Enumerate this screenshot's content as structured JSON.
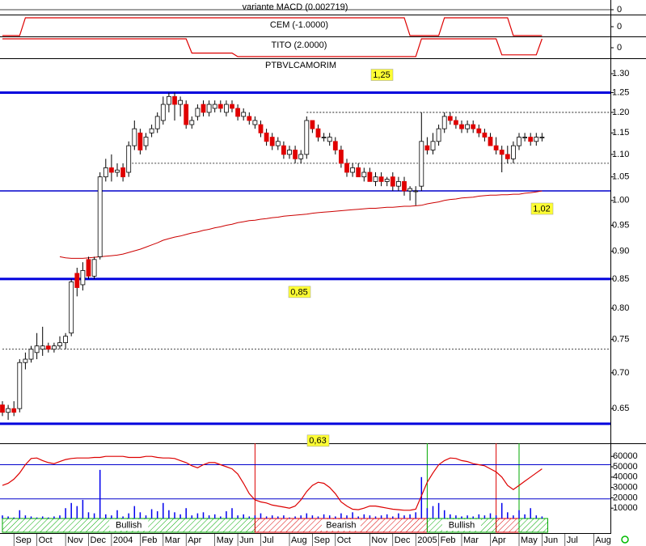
{
  "chart_data": [
    {
      "type": "bar",
      "title": "variante MACD (0.002719)",
      "ylim": [
        -1,
        1
      ],
      "yticks": [
        0
      ],
      "grid": true
    },
    {
      "type": "line",
      "title": "CEM (-1.0000)",
      "color": "#dd0000",
      "ylim": [
        -1,
        1
      ],
      "yticks": [
        0
      ],
      "values": [
        -1,
        -1,
        -1,
        -1,
        1,
        1,
        1,
        1,
        1,
        1,
        1,
        1,
        1,
        1,
        1,
        1,
        1,
        1,
        1,
        1,
        1,
        1,
        1,
        1,
        1,
        1,
        1,
        1,
        1,
        1,
        1,
        1,
        1,
        1,
        1,
        1,
        1,
        1,
        1,
        1,
        1,
        1,
        1,
        1,
        1,
        1,
        1,
        1,
        1,
        1,
        1,
        1,
        1,
        1,
        1,
        1,
        1,
        1,
        1,
        1,
        1,
        1,
        1,
        1,
        1,
        1,
        1,
        1,
        1,
        1,
        1,
        -1,
        -1,
        -1,
        -1,
        -1,
        -1,
        1,
        1,
        1,
        1,
        1,
        1,
        1,
        1,
        1,
        1,
        1,
        1,
        -1,
        -1,
        -1,
        -1,
        -1,
        -1
      ]
    },
    {
      "type": "line",
      "title": "TITO (2.0000)",
      "color": "#dd0000",
      "ylim": [
        -1,
        1
      ],
      "yticks": [
        0
      ],
      "values": [
        1,
        1,
        1,
        1,
        1,
        1,
        1,
        1,
        1,
        1,
        1,
        1,
        1,
        1,
        1,
        1,
        1,
        1,
        1,
        1,
        1,
        1,
        1,
        1,
        1,
        1,
        1,
        1,
        1,
        1,
        1,
        1,
        1,
        -0.6,
        -0.6,
        -0.6,
        -0.6,
        -0.6,
        -0.6,
        -0.6,
        -0.6,
        -1,
        -1,
        -1,
        -1,
        -1,
        -1,
        -1,
        -1,
        -1,
        -1,
        -1,
        -1,
        -1,
        -1,
        -1,
        -1,
        -1,
        -1,
        -1,
        -1,
        -1,
        -1,
        -1,
        -1,
        -1,
        -1,
        -1,
        -1,
        -1,
        -1,
        -1,
        -1,
        1,
        1,
        1,
        1,
        1,
        1,
        1,
        1,
        1,
        1,
        1,
        1,
        1,
        1,
        -0.8,
        -0.8,
        -0.8,
        -0.8,
        -0.8,
        -0.8,
        -0.8,
        1
      ]
    },
    {
      "type": "candlestick",
      "title": "PTBVLCAMORIM",
      "log_scale": true,
      "ylim": [
        0.605,
        1.34
      ],
      "yticks": [
        {
          "value": 1.3,
          "label": "1.30"
        },
        1.25,
        {
          "value": 1.2,
          "label": "1.20"
        },
        1.15,
        {
          "value": 1.1,
          "label": "1.10"
        },
        1.05,
        {
          "value": 1.0,
          "label": "1.00"
        },
        0.95,
        {
          "value": 0.9,
          "label": "0.90"
        },
        0.85,
        {
          "value": 0.8,
          "label": "0.80"
        },
        0.75,
        {
          "value": 0.7,
          "label": "0.70"
        },
        0.65
      ],
      "up_color": "#ffffff",
      "down_color": "#e00000",
      "categories": [
        null,
        null,
        "Sep",
        null,
        null,
        null,
        "Oct",
        null,
        null,
        null,
        null,
        "Nov",
        null,
        null,
        null,
        "Dec",
        null,
        null,
        null,
        "2004",
        null,
        null,
        null,
        null,
        "Feb",
        null,
        null,
        null,
        "Mar",
        null,
        null,
        null,
        "Apr",
        null,
        null,
        null,
        null,
        "May",
        null,
        null,
        null,
        "Jun",
        null,
        null,
        null,
        "Jul",
        null,
        null,
        null,
        null,
        "Aug",
        null,
        null,
        null,
        "Sep",
        null,
        null,
        null,
        "Oct",
        null,
        null,
        null,
        null,
        null,
        "Nov",
        null,
        null,
        null,
        "Dec",
        null,
        null,
        null,
        "2005",
        null,
        null,
        null,
        "Feb",
        null,
        null,
        null,
        "Mar",
        null,
        null,
        null,
        null,
        "Apr",
        null,
        null,
        null,
        null,
        "May",
        null,
        null,
        null,
        "Jun",
        null,
        null,
        null,
        "Jul",
        null,
        null,
        null,
        null,
        "Aug",
        null,
        null
      ],
      "open": [
        0.655,
        0.645,
        0.65,
        0.65,
        0.715,
        0.72,
        0.73,
        0.735,
        0.74,
        0.735,
        0.74,
        0.745,
        0.76,
        0.86,
        0.84,
        0.885,
        0.855,
        0.89,
        1.05,
        1.07,
        1.06,
        1.07,
        1.06,
        1.12,
        1.15,
        1.12,
        1.15,
        1.16,
        1.18,
        1.22,
        1.24,
        1.22,
        1.22,
        1.17,
        1.19,
        1.22,
        1.2,
        1.21,
        1.22,
        1.2,
        1.22,
        1.21,
        1.19,
        1.19,
        1.17,
        1.17,
        1.15,
        1.14,
        1.12,
        1.12,
        1.1,
        1.11,
        1.09,
        1.1,
        1.18,
        1.16,
        1.14,
        1.13,
        1.13,
        1.11,
        1.08,
        1.06,
        1.07,
        1.05,
        1.06,
        1.04,
        1.05,
        1.04,
        1.05,
        1.03,
        1.04,
        1.02,
        1.02,
        1.03,
        1.12,
        1.11,
        1.13,
        1.16,
        1.19,
        1.18,
        1.17,
        1.16,
        1.17,
        1.16,
        1.15,
        1.14,
        1.12,
        1.11,
        1.1,
        1.09,
        1.12,
        1.14,
        1.14,
        1.13,
        1.14,
        null,
        null,
        null,
        null,
        null,
        null,
        null,
        null,
        null,
        null,
        null
      ],
      "high": [
        0.66,
        0.655,
        0.66,
        0.72,
        0.73,
        0.74,
        0.76,
        0.77,
        0.745,
        0.745,
        0.755,
        0.76,
        0.85,
        0.87,
        0.88,
        0.89,
        0.89,
        1.06,
        1.09,
        1.1,
        1.08,
        1.08,
        1.13,
        1.18,
        1.16,
        1.15,
        1.17,
        1.2,
        1.24,
        1.25,
        1.25,
        1.24,
        1.23,
        1.19,
        1.22,
        1.23,
        1.23,
        1.23,
        1.23,
        1.23,
        1.23,
        1.22,
        1.21,
        1.2,
        1.19,
        1.18,
        1.16,
        1.15,
        1.14,
        1.13,
        1.12,
        1.12,
        1.11,
        1.19,
        1.18,
        1.17,
        1.15,
        1.15,
        1.14,
        1.12,
        1.09,
        1.08,
        1.08,
        1.07,
        1.07,
        1.06,
        1.06,
        1.05,
        1.06,
        1.05,
        1.05,
        1.03,
        1.03,
        1.2,
        1.14,
        1.15,
        1.17,
        1.2,
        1.2,
        1.19,
        1.18,
        1.18,
        1.18,
        1.17,
        1.16,
        1.15,
        1.14,
        1.12,
        1.12,
        1.13,
        1.15,
        1.15,
        1.15,
        1.15,
        1.15,
        null,
        null,
        null,
        null,
        null,
        null,
        null,
        null,
        null,
        null,
        null
      ],
      "low": [
        0.64,
        0.635,
        0.64,
        0.645,
        0.705,
        0.715,
        0.72,
        0.725,
        0.73,
        0.73,
        0.735,
        0.735,
        0.755,
        0.82,
        0.83,
        0.85,
        0.85,
        0.885,
        1.04,
        1.04,
        1.05,
        1.04,
        1.05,
        1.11,
        1.1,
        1.11,
        1.14,
        1.15,
        1.17,
        1.2,
        1.18,
        1.19,
        1.16,
        1.16,
        1.18,
        1.19,
        1.19,
        1.2,
        1.2,
        1.19,
        1.2,
        1.18,
        1.18,
        1.17,
        1.16,
        1.14,
        1.12,
        1.11,
        1.11,
        1.09,
        1.09,
        1.08,
        1.08,
        1.09,
        1.15,
        1.13,
        1.13,
        1.12,
        1.1,
        1.07,
        1.05,
        1.05,
        1.05,
        1.04,
        1.04,
        1.03,
        1.03,
        1.03,
        1.02,
        1.02,
        1.01,
        1.0,
        0.99,
        1.02,
        1.1,
        1.1,
        1.12,
        1.15,
        1.17,
        1.16,
        1.15,
        1.15,
        1.15,
        1.14,
        1.13,
        1.12,
        1.1,
        1.06,
        1.08,
        1.08,
        1.11,
        1.13,
        1.12,
        1.12,
        1.13,
        null,
        null,
        null,
        null,
        null,
        null,
        null,
        null,
        null,
        null,
        null
      ],
      "close": [
        0.645,
        0.65,
        0.645,
        0.715,
        0.72,
        0.735,
        0.74,
        0.74,
        0.735,
        0.74,
        0.745,
        0.755,
        0.845,
        0.835,
        0.865,
        0.855,
        0.885,
        1.05,
        1.07,
        1.06,
        1.065,
        1.05,
        1.12,
        1.16,
        1.11,
        1.14,
        1.16,
        1.19,
        1.22,
        1.24,
        1.22,
        1.23,
        1.17,
        1.18,
        1.21,
        1.2,
        1.22,
        1.22,
        1.21,
        1.22,
        1.21,
        1.19,
        1.2,
        1.18,
        1.18,
        1.15,
        1.13,
        1.12,
        1.13,
        1.1,
        1.11,
        1.09,
        1.1,
        1.18,
        1.16,
        1.14,
        1.14,
        1.14,
        1.11,
        1.08,
        1.06,
        1.07,
        1.05,
        1.06,
        1.04,
        1.05,
        1.04,
        1.045,
        1.03,
        1.04,
        1.02,
        1.025,
        1.02,
        1.13,
        1.11,
        1.13,
        1.16,
        1.19,
        1.18,
        1.17,
        1.16,
        1.17,
        1.16,
        1.15,
        1.14,
        1.12,
        1.11,
        1.1,
        1.09,
        1.12,
        1.14,
        1.14,
        1.13,
        1.14,
        1.14,
        null,
        null,
        null,
        null,
        null,
        null,
        null,
        null,
        null,
        null,
        null
      ],
      "moving_average": {
        "color": "#cc0000",
        "values": [
          null,
          null,
          null,
          null,
          null,
          null,
          null,
          null,
          null,
          null,
          0.89,
          0.888,
          0.887,
          0.887,
          0.887,
          0.888,
          0.889,
          0.89,
          0.891,
          0.892,
          0.893,
          0.895,
          0.898,
          0.901,
          0.904,
          0.908,
          0.912,
          0.916,
          0.921,
          0.924,
          0.927,
          0.929,
          0.932,
          0.935,
          0.937,
          0.94,
          0.942,
          0.945,
          0.947,
          0.95,
          0.952,
          0.955,
          0.957,
          0.959,
          0.96,
          0.962,
          0.963,
          0.965,
          0.966,
          0.968,
          0.969,
          0.97,
          0.971,
          0.972,
          0.974,
          0.975,
          0.976,
          0.977,
          0.978,
          0.979,
          0.98,
          0.981,
          0.982,
          0.983,
          0.984,
          0.984,
          0.985,
          0.986,
          0.986,
          0.987,
          0.988,
          0.988,
          0.989,
          0.99,
          0.993,
          0.995,
          0.997,
          1.0,
          1.002,
          1.003,
          1.005,
          1.006,
          1.007,
          1.009,
          1.01,
          1.011,
          1.011,
          1.012,
          1.012,
          1.013,
          1.013,
          1.015,
          1.016,
          1.018,
          1.02,
          null,
          null,
          null,
          null,
          null,
          null,
          null,
          null,
          null,
          null,
          null
        ]
      },
      "levels": [
        {
          "value": 1.25,
          "label": "1,25",
          "style": "thick"
        },
        {
          "value": 1.02,
          "label": "1,02",
          "style": "thin"
        },
        {
          "value": 0.85,
          "label": "0,85",
          "style": "thick"
        },
        {
          "value": 0.63,
          "label": "0,63",
          "style": "thick"
        },
        {
          "value": 1.2,
          "style": "dashed",
          "start": 53
        },
        {
          "value": 1.08,
          "style": "dashed",
          "start": 22
        },
        {
          "value": 0.735,
          "style": "dashed",
          "start": 0
        }
      ]
    },
    {
      "type": "combo",
      "ylim": [
        0,
        72700
      ],
      "yticks": [
        60000,
        50000,
        40000,
        30000,
        20000,
        10000
      ],
      "volume": {
        "color": "#0000ee",
        "values": [
          3000,
          2000,
          1000,
          8000,
          3000,
          2000,
          1000,
          2000,
          1000,
          2000,
          3000,
          10000,
          15000,
          12000,
          18000,
          6000,
          5000,
          47000,
          4000,
          3000,
          8000,
          2000,
          5000,
          12000,
          6000,
          3000,
          9000,
          7000,
          15000,
          8000,
          6000,
          4000,
          10000,
          3000,
          5000,
          6000,
          3000,
          4000,
          2000,
          7000,
          10000,
          3000,
          4000,
          2000,
          3000,
          5000,
          2000,
          3000,
          2000,
          3000,
          1000,
          2000,
          3000,
          5000,
          3000,
          2000,
          4000,
          3000,
          2000,
          5000,
          3000,
          6000,
          2000,
          4000,
          3000,
          2000,
          3000,
          4000,
          2000,
          5000,
          3000,
          4000,
          6000,
          40000,
          10000,
          12000,
          15000,
          8000,
          4000,
          3000,
          2000,
          3000,
          2000,
          4000,
          3000,
          5000,
          3000,
          15000,
          6000,
          3000,
          8000,
          4000,
          10000,
          3000,
          2000
        ]
      },
      "oscillator": {
        "color": "#dd0000",
        "values": [
          32000,
          34000,
          38000,
          44000,
          52000,
          58000,
          58500,
          56000,
          54000,
          53000,
          55000,
          57000,
          58000,
          58500,
          58500,
          58500,
          59000,
          59000,
          60000,
          60000,
          60000,
          60000,
          59000,
          59000,
          59000,
          60000,
          60000,
          59000,
          58500,
          58500,
          58000,
          56000,
          54000,
          51000,
          49000,
          52000,
          54000,
          54000,
          52000,
          50000,
          48000,
          43000,
          34000,
          24000,
          18000,
          16000,
          15000,
          13000,
          12000,
          11000,
          10000,
          12000,
          18000,
          26000,
          32000,
          35000,
          34000,
          30000,
          24000,
          16000,
          12000,
          9000,
          8500,
          10000,
          12000,
          12000,
          11000,
          10000,
          9000,
          8500,
          8000,
          8000,
          9000,
          22000,
          35000,
          44000,
          52000,
          56000,
          58500,
          58000,
          56000,
          55000,
          53000,
          52000,
          51000,
          48000,
          45000,
          40000,
          32000,
          28000,
          32000,
          36000,
          40000,
          44000,
          48000
        ]
      },
      "levels": [
        52000,
        19000
      ],
      "level_color": "#0000cc",
      "bands": [
        {
          "label": "Bullish",
          "color": "#00aa00",
          "start": 0,
          "end": 44
        },
        {
          "label": "Bearish",
          "color": "#dd0000",
          "start": 44,
          "end": 74
        },
        {
          "label": "Bullish",
          "color": "#00aa00",
          "start": 74,
          "end": 86
        },
        {
          "color": "#dd0000",
          "start": 86,
          "end": 90
        },
        {
          "color": "#00aa00",
          "start": 90,
          "end": 95
        }
      ]
    }
  ]
}
